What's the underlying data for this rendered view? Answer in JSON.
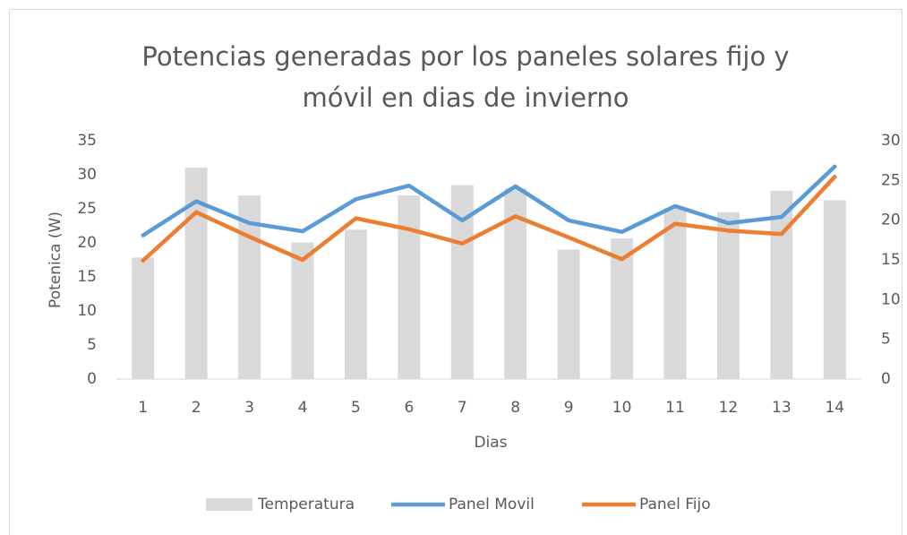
{
  "chart_data": {
    "type": "bar-line",
    "title": "Potencias generadas por los paneles solares fijo y móvil en dias de invierno",
    "xlabel": "Dias",
    "ylabel": "Potenica (W)",
    "categories": [
      "1",
      "2",
      "3",
      "4",
      "5",
      "6",
      "7",
      "8",
      "9",
      "10",
      "11",
      "12",
      "13",
      "14"
    ],
    "series": [
      {
        "name": "Temperatura",
        "type": "bar",
        "axis": "y2",
        "color": "#d9d9d9",
        "values": [
          15.3,
          26.6,
          23.1,
          17.2,
          18.8,
          23.1,
          24.4,
          24.0,
          16.3,
          17.7,
          21.5,
          21.0,
          23.7,
          22.5
        ]
      },
      {
        "name": "Panel Movil",
        "type": "line",
        "axis": "y",
        "color": "#5b9bd5",
        "values": [
          21.1,
          26.1,
          22.9,
          21.7,
          26.4,
          28.4,
          23.3,
          28.3,
          23.3,
          21.6,
          25.4,
          22.9,
          23.8,
          31.2
        ]
      },
      {
        "name": "Panel Fijo",
        "type": "line",
        "axis": "y",
        "color": "#ed7d31",
        "values": [
          17.4,
          24.5,
          20.9,
          17.5,
          23.6,
          22.0,
          19.9,
          23.9,
          20.8,
          17.6,
          22.8,
          21.8,
          21.3,
          29.7
        ]
      }
    ],
    "ylim": [
      0,
      35
    ],
    "yticks": [
      0,
      5,
      10,
      15,
      20,
      25,
      30,
      35
    ],
    "y2lim": [
      0,
      30
    ],
    "y2ticks": [
      0,
      5,
      10,
      15,
      20,
      25,
      30
    ],
    "grid": false,
    "legend": "bottom"
  }
}
